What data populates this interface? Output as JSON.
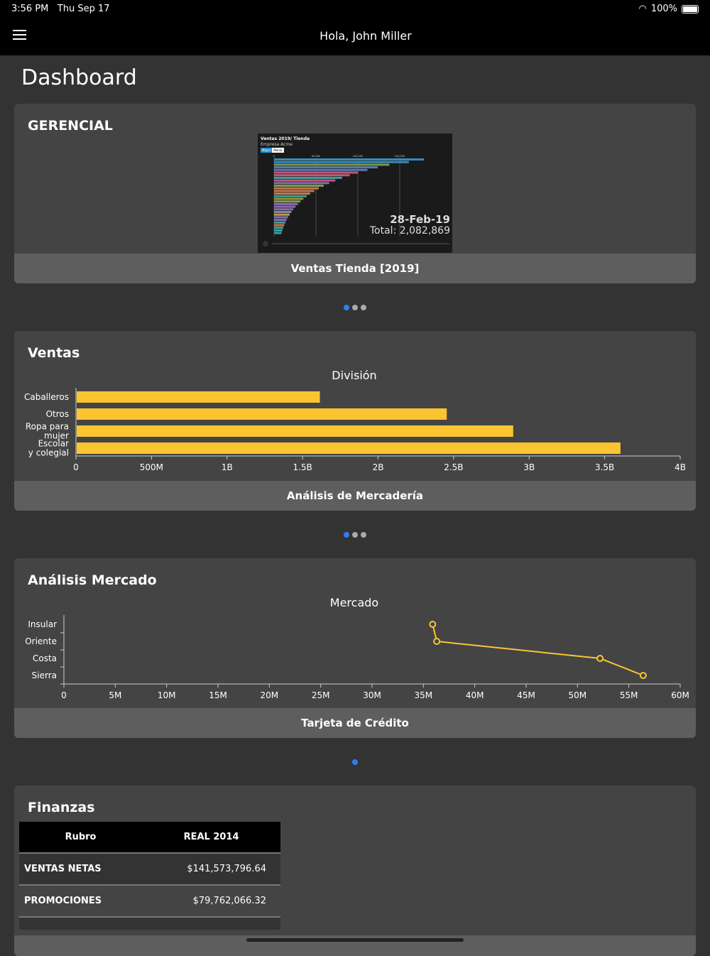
{
  "status": {
    "time": "3:56 PM",
    "date": "Thu Sep 17",
    "battery": "100%",
    "battery_level": 1.0
  },
  "header": {
    "greeting": "Hola, John Miller"
  },
  "page_title": "Dashboard",
  "cards": [
    {
      "title": "GERENCIAL",
      "footer": "Ventas Tienda [2019]",
      "thumbnail": {
        "title": "Ventas 2019/ Tienda",
        "subtitle": "Empresa Acme",
        "buttons": [
          "Mayor",
          "Menor"
        ],
        "ticks": [
          "0",
          "50,000",
          "100,000",
          "150,000"
        ],
        "date": "28-Feb-19",
        "total": "Total: 2,082,869"
      },
      "pager": {
        "count": 3,
        "active": 0
      }
    },
    {
      "title": "Ventas",
      "footer": "Análisis de Mercadería",
      "pager": {
        "count": 3,
        "active": 0
      }
    },
    {
      "title": "Análisis Mercado",
      "footer": "Tarjeta de Crédito",
      "pager": {
        "count": 1,
        "active": 0
      }
    },
    {
      "title": "Finanzas",
      "table": {
        "headers": [
          "Rubro",
          "REAL 2014"
        ],
        "rows": [
          [
            "VENTAS NETAS",
            "$141,573,796.64"
          ],
          [
            "PROMOCIONES",
            "$79,762,066.32"
          ]
        ]
      }
    }
  ],
  "chart_data": [
    {
      "type": "bar",
      "orientation": "horizontal",
      "title": "División",
      "categories": [
        "Caballeros",
        "Otros",
        "Ropa para mujer",
        "Escolar y colegial"
      ],
      "values": [
        1610000000,
        2450000000,
        2890000000,
        3600000000
      ],
      "xlim": [
        0,
        4000000000
      ],
      "xticks": [
        "0",
        "500M",
        "1B",
        "1.5B",
        "2B",
        "2.5B",
        "3B",
        "3.5B",
        "4B"
      ],
      "color": "#fbc531"
    },
    {
      "type": "line",
      "title": "Mercado",
      "categories": [
        "Insular",
        "Oriente",
        "Costa",
        "Sierra"
      ],
      "values": [
        35900000,
        36300000,
        52200000,
        56400000
      ],
      "xlim": [
        0,
        60000000
      ],
      "xticks": [
        "0",
        "5M",
        "10M",
        "15M",
        "20M",
        "25M",
        "30M",
        "35M",
        "40M",
        "45M",
        "50M",
        "55M",
        "60M"
      ],
      "color": "#fbc531"
    }
  ]
}
